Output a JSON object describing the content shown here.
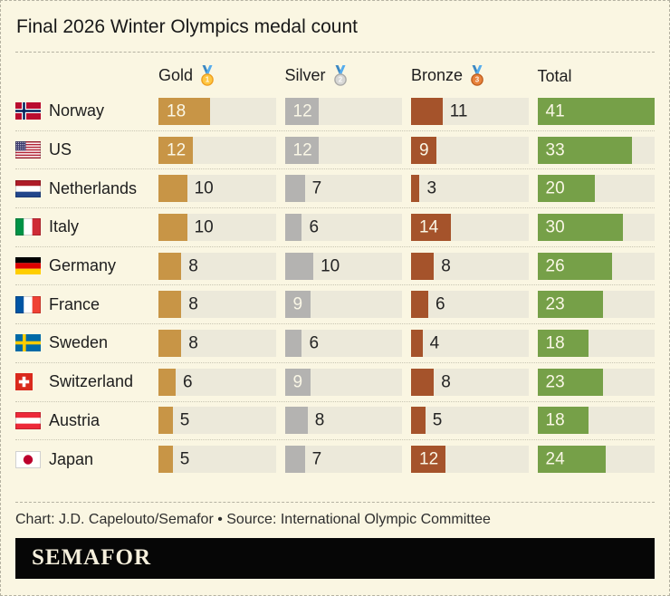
{
  "title": "Final 2026 Winter Olympics medal count",
  "chart_data": {
    "type": "bar",
    "title": "Final 2026 Winter Olympics medal count",
    "orientation": "horizontal",
    "categories": [
      "Norway",
      "US",
      "Netherlands",
      "Italy",
      "Germany",
      "France",
      "Sweden",
      "Switzerland",
      "Austria",
      "Japan"
    ],
    "flags": [
      "norway",
      "us",
      "netherlands",
      "italy",
      "germany",
      "france",
      "sweden",
      "switzerland",
      "austria",
      "japan"
    ],
    "series": [
      {
        "name": "Gold",
        "icon": "gold-medal-icon",
        "color": "#C89546",
        "values": [
          18,
          12,
          10,
          10,
          8,
          8,
          8,
          6,
          5,
          5
        ]
      },
      {
        "name": "Silver",
        "icon": "silver-medal-icon",
        "color": "#B4B3B1",
        "values": [
          12,
          12,
          7,
          6,
          10,
          9,
          6,
          9,
          8,
          7
        ]
      },
      {
        "name": "Bronze",
        "icon": "bronze-medal-icon",
        "color": "#A5532B",
        "values": [
          11,
          9,
          3,
          14,
          8,
          6,
          4,
          8,
          5,
          12
        ]
      },
      {
        "name": "Total",
        "icon": null,
        "color": "#76A048",
        "values": [
          41,
          33,
          20,
          30,
          26,
          23,
          18,
          23,
          18,
          24
        ]
      }
    ],
    "value_axis_max": 41,
    "track_color": "#ECE9DA",
    "background_color": "#FAF6E2",
    "grid": false,
    "legend_position": "column headers (top)"
  },
  "footer": {
    "credit": "Chart: J.D. Capelouto/Semafor • Source: International Olympic Committee",
    "logo": "SEMAFOR"
  }
}
